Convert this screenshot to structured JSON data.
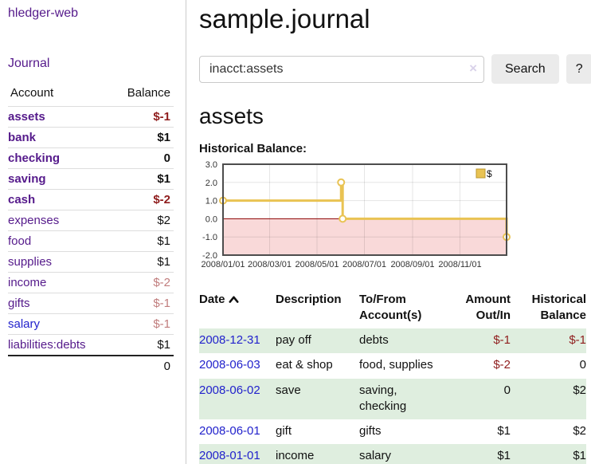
{
  "app": {
    "brand": "hledger-web",
    "nav_journal": "Journal"
  },
  "colors": {
    "link_purple": "#551a8b",
    "link_blue": "#2222cc",
    "negative": "#8f1d1d",
    "negative_muted": "#c17d7d",
    "row_stripe_green": "#dfeedf",
    "button_gray": "#ebebeb"
  },
  "sidebar": {
    "header": {
      "account": "Account",
      "balance": "Balance"
    },
    "accounts": [
      {
        "name": "assets",
        "balance": "$-1"
      },
      {
        "name": "bank",
        "balance": "$1"
      },
      {
        "name": "checking",
        "balance": "0"
      },
      {
        "name": "saving",
        "balance": "$1"
      },
      {
        "name": "cash",
        "balance": "$-2"
      },
      {
        "name": "expenses",
        "balance": "$2"
      },
      {
        "name": "food",
        "balance": "$1"
      },
      {
        "name": "supplies",
        "balance": "$1"
      },
      {
        "name": "income",
        "balance": "$-2"
      },
      {
        "name": "gifts",
        "balance": "$-1"
      },
      {
        "name": "salary",
        "balance": "$-1"
      },
      {
        "name": "liabilities:debts",
        "balance": "$1"
      }
    ],
    "total": "0"
  },
  "header": {
    "title": "sample.journal"
  },
  "search": {
    "value": "inacct:assets",
    "clear": "×",
    "button": "Search",
    "help": "?"
  },
  "account_page": {
    "title": "assets",
    "chart_label": "Historical Balance:"
  },
  "chart_data": {
    "type": "line",
    "title": "Historical Balance",
    "legend": [
      {
        "label": "$",
        "color": "#e9c353"
      }
    ],
    "legend_position": "top-right",
    "grid": true,
    "ylim": [
      -2,
      3
    ],
    "y_ticks": [
      {
        "v": 3,
        "label": "3.0"
      },
      {
        "v": 2,
        "label": "2.0"
      },
      {
        "v": 1,
        "label": "1.0"
      },
      {
        "v": 0,
        "label": "0.0"
      },
      {
        "v": -1,
        "label": "-1.0"
      },
      {
        "v": -2,
        "label": "-2.0"
      }
    ],
    "x_domain_days": [
      0,
      365
    ],
    "x_ticks": [
      {
        "d": 0,
        "label": "2008/01/01"
      },
      {
        "d": 60,
        "label": "2008/03/01"
      },
      {
        "d": 121,
        "label": "2008/05/01"
      },
      {
        "d": 182,
        "label": "2008/07/01"
      },
      {
        "d": 244,
        "label": "2008/09/01"
      },
      {
        "d": 305,
        "label": "2008/11/01"
      }
    ],
    "series": [
      {
        "name": "$",
        "data_by_date": [
          [
            "2008-01-01",
            1
          ],
          [
            "2008-06-01",
            2
          ],
          [
            "2008-06-03",
            0
          ],
          [
            "2008-12-31",
            -1
          ]
        ],
        "step_points": [
          [
            0,
            1
          ],
          [
            152,
            1
          ],
          [
            152,
            2
          ],
          [
            154,
            2
          ],
          [
            154,
            0
          ],
          [
            365,
            0
          ],
          [
            365,
            -1
          ]
        ],
        "markers": [
          [
            0,
            1
          ],
          [
            152,
            2
          ],
          [
            154,
            0
          ],
          [
            365,
            -1
          ]
        ]
      }
    ],
    "colors": {
      "line": "#e9c353",
      "legend_box_border": "#bd982f",
      "marker_fill": "#ffffff",
      "zero_line": "#8b0000",
      "negative_region": "#f9d9d9",
      "grid": "rgba(0,0,0,0.10)",
      "border": "#4d4d4d"
    }
  },
  "register": {
    "columns": {
      "date": "Date",
      "description": "Description",
      "tofrom": "To/From Account(s)",
      "amount": "Amount Out/In",
      "balance": "Historical Balance"
    },
    "rows": [
      {
        "date": "2008-12-31",
        "description": "pay off",
        "accounts": "debts",
        "amount": "$-1",
        "balance": "$-1"
      },
      {
        "date": "2008-06-03",
        "description": "eat & shop",
        "accounts": "food, supplies",
        "amount": "$-2",
        "balance": "0"
      },
      {
        "date": "2008-06-02",
        "description": "save",
        "accounts": "saving, checking",
        "amount": "0",
        "balance": "$2"
      },
      {
        "date": "2008-06-01",
        "description": "gift",
        "accounts": "gifts",
        "amount": "$1",
        "balance": "$2"
      },
      {
        "date": "2008-01-01",
        "description": "income",
        "accounts": "salary",
        "amount": "$1",
        "balance": "$1"
      }
    ]
  }
}
